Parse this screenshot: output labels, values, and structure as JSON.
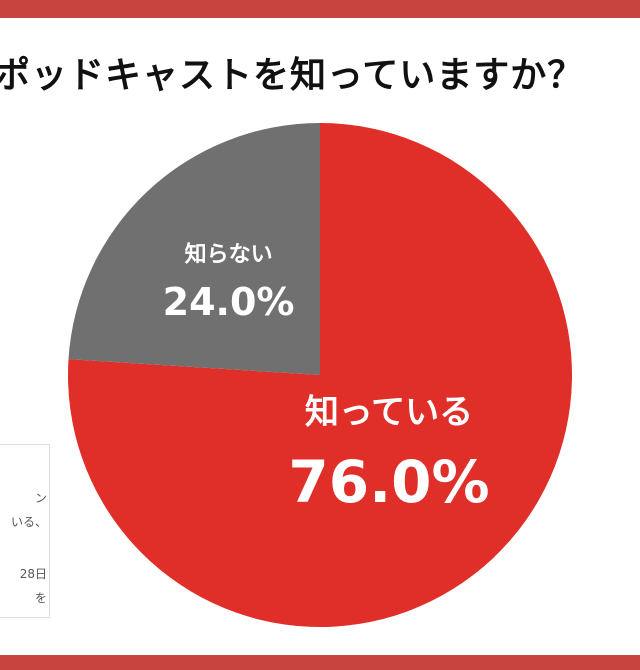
{
  "colors": {
    "accent": "#e02e29",
    "frame": "#c8443e",
    "unknown": "#707070",
    "label": "#ffffff"
  },
  "title": "ポッドキャストを知っていますか？",
  "note": {
    "lines": [
      "ン",
      "いる、",
      "28日",
      "を"
    ]
  },
  "chart_data": {
    "type": "pie",
    "start": "12 o'clock",
    "direction": "clockwise",
    "slices": [
      {
        "label": "知っている",
        "value": 76.0,
        "display": "76.0%",
        "color": "#e02e29"
      },
      {
        "label": "知らない",
        "value": 24.0,
        "display": "24.0%",
        "color": "#707070"
      }
    ]
  }
}
